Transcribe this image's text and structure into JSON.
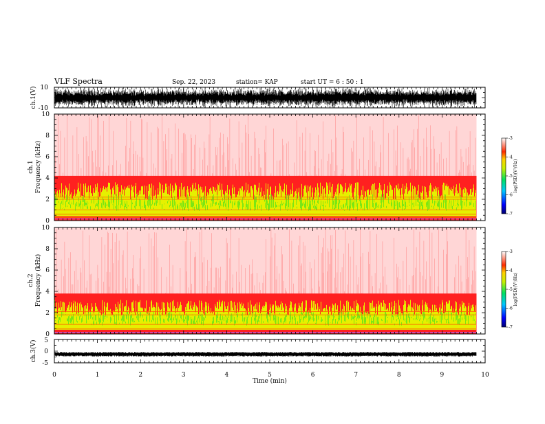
{
  "header": {
    "title": "VLF Spectra",
    "date": "Sep. 22, 2023",
    "station": "station= KAP",
    "start": "start  UT =   6 : 50 : 1"
  },
  "chart_data": [
    {
      "type": "line",
      "name": "waveform-ch1",
      "ylabel": "ch.1(V)",
      "ylim": [
        -10,
        10
      ],
      "yticks": [
        "10",
        "-10"
      ],
      "xlim": [
        0,
        10
      ],
      "color": "#000000",
      "data_extent_min": 9.8
    },
    {
      "type": "heatmap",
      "name": "spectrogram-ch1",
      "ylabel": "ch.1\nFrequency (kHz)",
      "ylim": [
        0,
        10
      ],
      "yticks": [
        "0",
        "2",
        "4",
        "6",
        "8",
        "10"
      ],
      "xlim": [
        0,
        10
      ],
      "data_extent_min": 9.8,
      "features": {
        "broadband_top_khz": 3.6,
        "lines_khz": [
          0.3,
          0.6,
          1.0,
          2.0,
          2.2
        ]
      },
      "colorbar": {
        "label": "log(PSD)(V²/Hz)",
        "range": [
          -7,
          -3
        ],
        "ticks": [
          "-3",
          "-4",
          "-5",
          "-6",
          "-7"
        ]
      }
    },
    {
      "type": "heatmap",
      "name": "spectrogram-ch2",
      "ylabel": "ch.2\nFrequency (kHz)",
      "ylim": [
        0,
        10
      ],
      "yticks": [
        "0",
        "2",
        "4",
        "6",
        "8",
        "10"
      ],
      "xlim": [
        0,
        10
      ],
      "data_extent_min": 9.8,
      "features": {
        "broadband_top_khz": 3.2,
        "lines_khz": [
          0.5,
          0.9,
          1.8,
          2.1
        ]
      },
      "colorbar": {
        "label": "log(PSD)(V²/Hz)",
        "range": [
          -7,
          -3
        ],
        "ticks": [
          "-3",
          "-4",
          "-5",
          "-6",
          "-7"
        ]
      }
    },
    {
      "type": "line",
      "name": "waveform-ch3",
      "ylabel": "ch.3(V)",
      "ylim": [
        -5,
        5
      ],
      "yticks": [
        "5",
        "0",
        "-5"
      ],
      "xlim": [
        0,
        10
      ],
      "color": "#000000",
      "data_extent_min": 9.8
    }
  ],
  "xaxis": {
    "label": "Time (min)",
    "ticks": [
      "0",
      "1",
      "2",
      "3",
      "4",
      "5",
      "6",
      "7",
      "8",
      "9",
      "10"
    ]
  }
}
